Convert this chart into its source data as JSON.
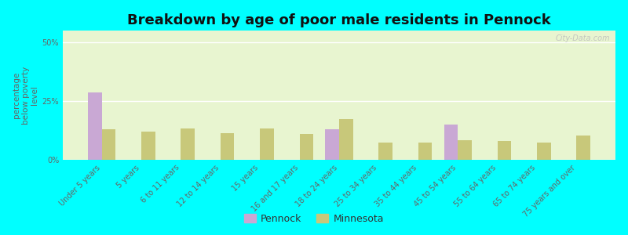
{
  "title": "Breakdown by age of poor male residents in Pennock",
  "categories": [
    "Under 5 years",
    "5 years",
    "6 to 11 years",
    "12 to 14 years",
    "15 years",
    "16 and 17 years",
    "18 to 24 years",
    "25 to 34 years",
    "35 to 44 years",
    "45 to 54 years",
    "55 to 64 years",
    "65 to 74 years",
    "75 years and over"
  ],
  "pennock_values": [
    28.5,
    0,
    0,
    0,
    0,
    0,
    13.0,
    0,
    0,
    15.0,
    0,
    0,
    0
  ],
  "minnesota_values": [
    13.0,
    12.0,
    13.5,
    11.5,
    13.5,
    11.0,
    17.5,
    7.5,
    7.5,
    8.5,
    8.0,
    7.5,
    10.5
  ],
  "pennock_color": "#c9a8d4",
  "minnesota_color": "#c8c87a",
  "ylabel": "percentage\nbelow poverty\nlevel",
  "ylim": [
    0,
    55
  ],
  "yticks": [
    0,
    25,
    50
  ],
  "ytick_labels": [
    "0%",
    "25%",
    "50%"
  ],
  "background_color": "#e8f5d0",
  "outer_background": "#00ffff",
  "bar_width": 0.35,
  "title_fontsize": 13,
  "axis_label_fontsize": 7.5,
  "tick_fontsize": 7
}
